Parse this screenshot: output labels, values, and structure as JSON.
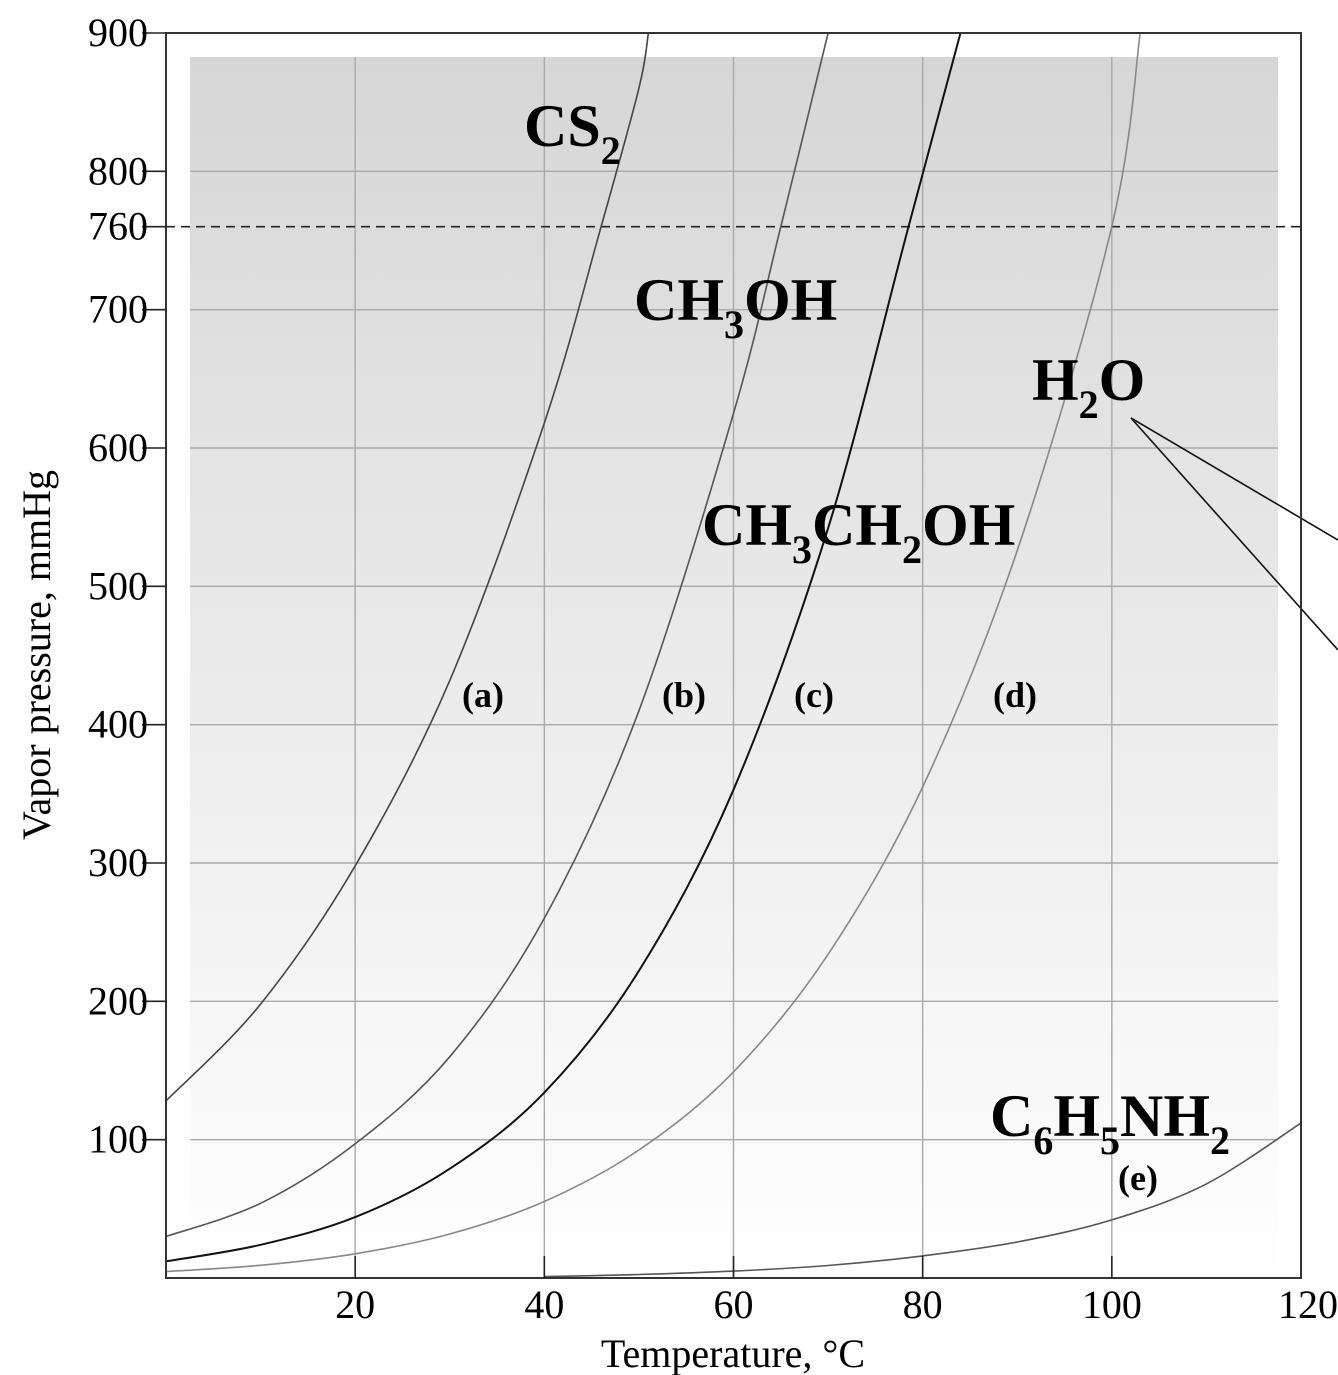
{
  "chart_data": {
    "type": "line",
    "xlabel": "Temperature, °C",
    "ylabel": "Vapor pressure, mmHg",
    "xlim": [
      0,
      120
    ],
    "ylim": [
      0,
      900
    ],
    "x_ticks": [
      "20",
      "40",
      "60",
      "80",
      "100",
      "120"
    ],
    "y_ticks": [
      "100",
      "200",
      "300",
      "400",
      "500",
      "600",
      "700",
      "760",
      "800",
      "900"
    ],
    "reference_line": {
      "y": 760,
      "style": "dashed"
    },
    "grid": true,
    "series": [
      {
        "id": "a",
        "label": "(a)",
        "formula": [
          [
            "CS",
            ""
          ],
          [
            "2",
            "sub"
          ]
        ],
        "x": [
          0,
          10,
          20,
          30,
          40,
          46,
          50,
          51
        ],
        "y": [
          128,
          198,
          298,
          432,
          618,
          760,
          860,
          900
        ],
        "color": "#444444",
        "width": 1.6
      },
      {
        "id": "b",
        "label": "(b)",
        "formula": [
          [
            "CH",
            ""
          ],
          [
            "3",
            "sub"
          ],
          [
            "OH",
            ""
          ]
        ],
        "x": [
          0,
          10,
          20,
          30,
          40,
          50,
          60,
          65,
          70
        ],
        "y": [
          30,
          54,
          97,
          160,
          260,
          410,
          625,
          760,
          900
        ],
        "color": "#555555",
        "width": 1.6
      },
      {
        "id": "c",
        "label": "(c)",
        "formula": [
          [
            "CH",
            ""
          ],
          [
            "3",
            "sub"
          ],
          [
            "CH",
            ""
          ],
          [
            "2",
            "sub"
          ],
          [
            "OH",
            ""
          ]
        ],
        "x": [
          0,
          10,
          20,
          30,
          40,
          50,
          60,
          70,
          78.5,
          84
        ],
        "y": [
          12,
          24,
          44,
          79,
          134,
          222,
          353,
          542,
          760,
          900
        ],
        "color": "#111111",
        "width": 2.0
      },
      {
        "id": "d",
        "label": "(d)",
        "formula": [
          [
            "H",
            ""
          ],
          [
            "2",
            "sub"
          ],
          [
            "O",
            ""
          ]
        ],
        "x": [
          0,
          10,
          20,
          30,
          40,
          50,
          60,
          70,
          80,
          90,
          100,
          103
        ],
        "y": [
          4.6,
          9.2,
          17.5,
          31.8,
          55.3,
          92.5,
          149,
          234,
          355,
          526,
          760,
          900
        ],
        "color": "#888888",
        "width": 1.6
      },
      {
        "id": "e",
        "label": "(e)",
        "formula": [
          [
            "C",
            ""
          ],
          [
            "6",
            "sub"
          ],
          [
            "H",
            ""
          ],
          [
            "5",
            "sub"
          ],
          [
            "NH",
            ""
          ],
          [
            "2",
            "sub"
          ]
        ],
        "x": [
          40,
          50,
          60,
          70,
          80,
          90,
          100,
          110,
          120
        ],
        "y": [
          1,
          2.5,
          5,
          9,
          16,
          26,
          42,
          68,
          112
        ],
        "color": "#555555",
        "width": 1.6
      }
    ]
  }
}
